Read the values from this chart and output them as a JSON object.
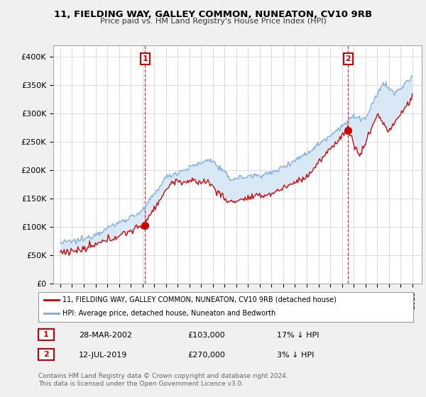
{
  "title": "11, FIELDING WAY, GALLEY COMMON, NUNEATON, CV10 9RB",
  "subtitle": "Price paid vs. HM Land Registry's House Price Index (HPI)",
  "ylim": [
    0,
    420000
  ],
  "yticks": [
    0,
    50000,
    100000,
    150000,
    200000,
    250000,
    300000,
    350000,
    400000
  ],
  "ytick_labels": [
    "£0",
    "£50K",
    "£100K",
    "£150K",
    "£200K",
    "£250K",
    "£300K",
    "£350K",
    "£400K"
  ],
  "sale1_date": 2002.23,
  "sale1_price": 103000,
  "sale1_text": "28-MAR-2002",
  "sale1_amount": "£103,000",
  "sale1_hpi": "17% ↓ HPI",
  "sale2_date": 2019.53,
  "sale2_price": 270000,
  "sale2_text": "12-JUL-2019",
  "sale2_amount": "£270,000",
  "sale2_hpi": "3% ↓ HPI",
  "legend_line1": "11, FIELDING WAY, GALLEY COMMON, NUNEATON, CV10 9RB (detached house)",
  "legend_line2": "HPI: Average price, detached house, Nuneaton and Bedworth",
  "footer": "Contains HM Land Registry data © Crown copyright and database right 2024.\nThis data is licensed under the Open Government Licence v3.0.",
  "red_color": "#cc0000",
  "blue_color": "#7aaadd",
  "fill_color": "#d8e8f5",
  "background_color": "#f0f0f0",
  "plot_bg": "#ffffff"
}
